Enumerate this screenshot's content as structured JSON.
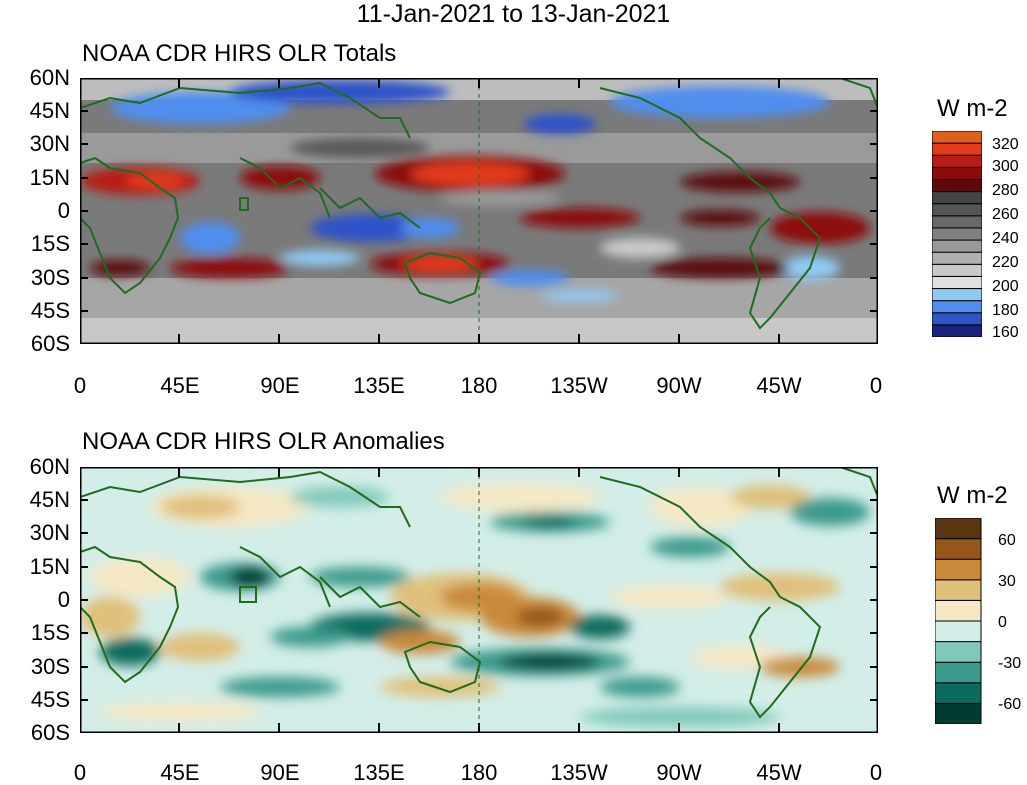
{
  "title": "11-Jan-2021 to 13-Jan-2021",
  "lon_ticks": [
    "0",
    "45E",
    "90E",
    "135E",
    "180",
    "135W",
    "90W",
    "45W",
    "0"
  ],
  "lat_ticks": [
    "60N",
    "45N",
    "30N",
    "15N",
    "0",
    "15S",
    "30S",
    "45S",
    "60S"
  ],
  "panels": [
    {
      "id": "totals",
      "title": "NOAA CDR HIRS OLR Totals",
      "legend": {
        "title": "W m-2",
        "colors": [
          "#1a237e",
          "#2f53c8",
          "#4f8eef",
          "#8fc9f2",
          "#e0e0e0",
          "#c9c9c9",
          "#b0b0b0",
          "#989898",
          "#808080",
          "#686868",
          "#555555",
          "#444444",
          "#5c0a0a",
          "#8c0b0b",
          "#b81c14",
          "#e23a1a",
          "#e0601e"
        ],
        "labels": [
          "320",
          "300",
          "280",
          "260",
          "240",
          "220",
          "200",
          "180",
          "160"
        ]
      }
    },
    {
      "id": "anomalies",
      "title": "NOAA CDR HIRS OLR Anomalies",
      "legend": {
        "title": "W m-2",
        "colors": [
          "#013c32",
          "#0b6b5f",
          "#3a9a8c",
          "#80c9ba",
          "#d3eee8",
          "#f6e8c4",
          "#e0c07a",
          "#c98a3a",
          "#96561a",
          "#5a3512"
        ],
        "labels": [
          "60",
          "30",
          "0",
          "-30",
          "-60"
        ]
      }
    }
  ]
}
